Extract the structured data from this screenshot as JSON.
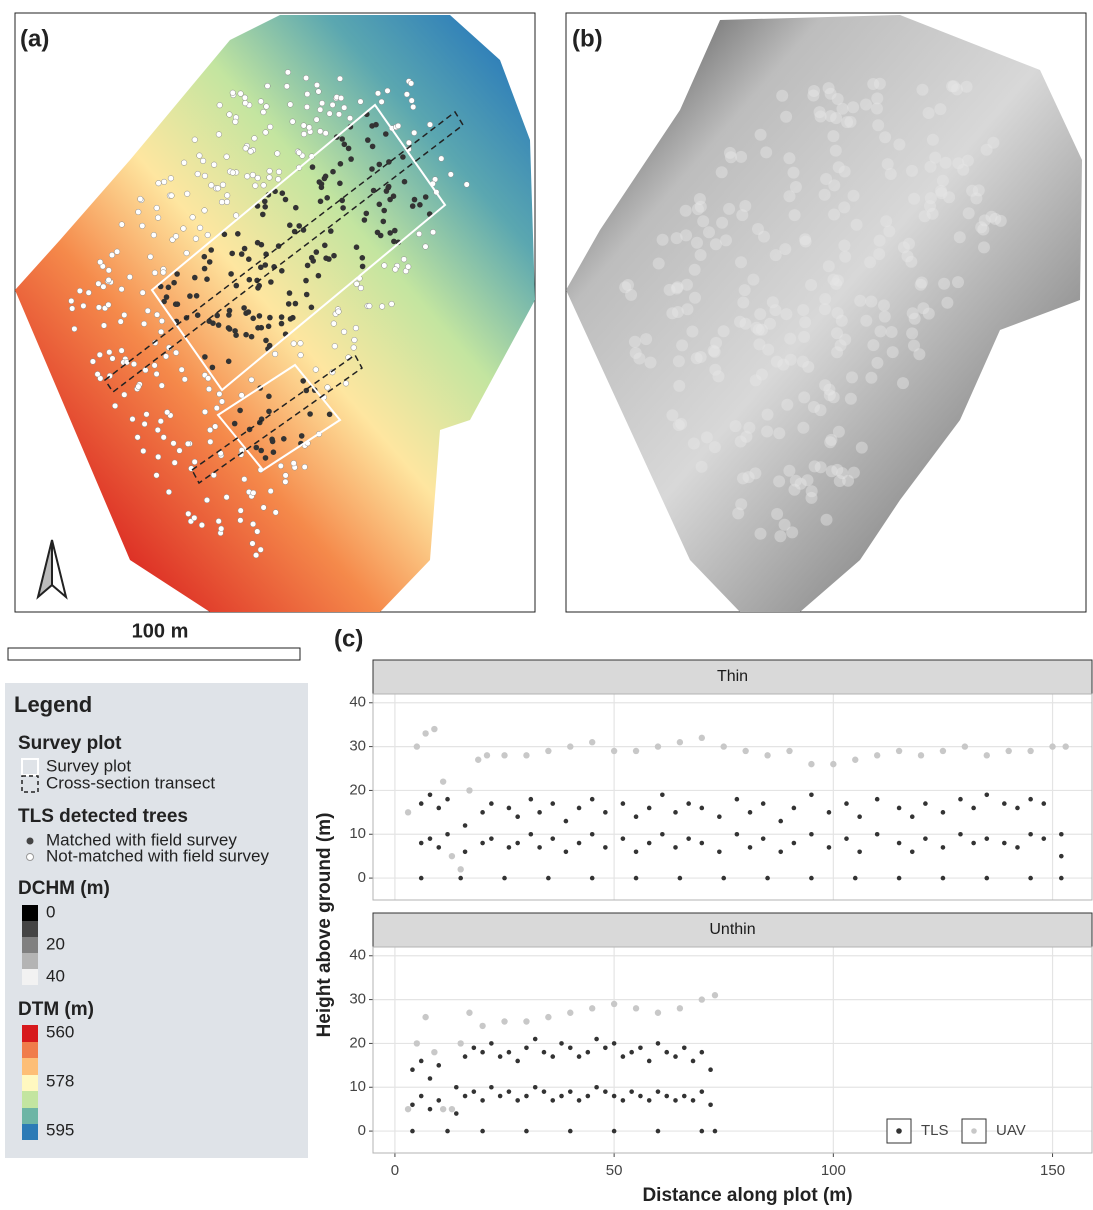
{
  "panel_labels": [
    "(a)",
    "(b)",
    "(c)"
  ],
  "scale_bar": "100 m",
  "legend": {
    "title": "Legend",
    "sections": [
      {
        "title": "Survey plot",
        "items": [
          "Survey plot",
          "Cross-section transect"
        ]
      },
      {
        "title": "TLS detected trees",
        "items": [
          "Matched with field survey",
          "Not-matched with field survey"
        ]
      },
      {
        "title": "DCHM (m)",
        "items": [
          "0",
          "20",
          "40"
        ]
      },
      {
        "title": "DTM (m)",
        "items": [
          "560",
          "578",
          "595"
        ]
      }
    ]
  },
  "chart_data": [
    {
      "type": "scatter",
      "facet": "Thin",
      "ylabel": "Height above ground (m)",
      "xlim": [
        -5,
        159
      ],
      "ylim": [
        -5,
        42
      ],
      "xticks": [
        0,
        50,
        100,
        150
      ],
      "yticks": [
        0,
        10,
        20,
        30,
        40
      ],
      "grid": true,
      "series": [
        {
          "name": "TLS",
          "color": "#333333",
          "x": [
            6,
            8,
            10,
            12,
            16,
            20,
            22,
            26,
            28,
            31,
            33,
            36,
            39,
            42,
            45,
            48,
            52,
            55,
            58,
            61,
            64,
            67,
            70,
            74,
            78,
            81,
            84,
            88,
            91,
            95,
            99,
            103,
            106,
            110,
            115,
            118,
            121,
            125,
            129,
            132,
            135,
            139,
            142,
            145,
            148,
            152,
            6,
            8,
            10,
            12,
            16,
            20,
            22,
            26,
            28,
            31,
            33,
            36,
            39,
            42,
            45,
            48,
            52,
            55,
            58,
            61,
            64,
            67,
            70,
            74,
            78,
            81,
            84,
            88,
            91,
            95,
            99,
            103,
            106,
            110,
            115,
            118,
            121,
            125,
            129,
            132,
            135,
            139,
            142,
            145,
            148,
            152,
            6,
            15,
            25,
            35,
            45,
            55,
            65,
            75,
            85,
            95,
            105,
            115,
            125,
            135,
            145,
            152
          ],
          "values": [
            17,
            19,
            16,
            18,
            12,
            15,
            17,
            16,
            14,
            18,
            15,
            17,
            13,
            16,
            18,
            15,
            17,
            14,
            16,
            19,
            15,
            17,
            16,
            14,
            18,
            15,
            17,
            13,
            16,
            19,
            15,
            17,
            14,
            18,
            16,
            14,
            17,
            15,
            18,
            16,
            19,
            17,
            16,
            18,
            17,
            10,
            8,
            9,
            7,
            10,
            6,
            8,
            9,
            7,
            8,
            10,
            7,
            9,
            6,
            8,
            10,
            7,
            9,
            6,
            8,
            10,
            7,
            9,
            8,
            6,
            10,
            7,
            9,
            6,
            8,
            10,
            7,
            9,
            6,
            10,
            8,
            6,
            9,
            7,
            10,
            8,
            9,
            8,
            7,
            10,
            9,
            5,
            0,
            0,
            0,
            0,
            0,
            0,
            0,
            0,
            0,
            0,
            0,
            0,
            0,
            0,
            0,
            0
          ]
        },
        {
          "name": "UAV",
          "color": "#c8c8c8",
          "x": [
            3,
            5,
            7,
            9,
            11,
            13,
            15,
            17,
            19,
            21,
            25,
            30,
            35,
            40,
            45,
            50,
            55,
            60,
            65,
            70,
            75,
            80,
            85,
            90,
            95,
            100,
            105,
            110,
            115,
            120,
            125,
            130,
            135,
            140,
            145,
            150,
            153
          ],
          "values": [
            15,
            30,
            33,
            34,
            22,
            5,
            2,
            20,
            27,
            28,
            28,
            28,
            29,
            30,
            31,
            29,
            29,
            30,
            31,
            32,
            30,
            29,
            28,
            29,
            26,
            26,
            27,
            28,
            29,
            28,
            29,
            30,
            28,
            29,
            29,
            30,
            30
          ]
        }
      ]
    },
    {
      "type": "scatter",
      "facet": "Unthin",
      "xlabel": "Distance along plot (m)",
      "legend": "bottom-right",
      "xlim": [
        -5,
        159
      ],
      "ylim": [
        -5,
        42
      ],
      "xticks": [
        0,
        50,
        100,
        150
      ],
      "yticks": [
        0,
        10,
        20,
        30,
        40
      ],
      "grid": true,
      "series": [
        {
          "name": "TLS",
          "color": "#333333",
          "x": [
            4,
            6,
            8,
            10,
            14,
            16,
            18,
            20,
            22,
            24,
            26,
            28,
            30,
            32,
            34,
            36,
            38,
            40,
            42,
            44,
            46,
            48,
            50,
            52,
            54,
            56,
            58,
            60,
            62,
            64,
            66,
            68,
            70,
            72,
            4,
            6,
            8,
            10,
            14,
            16,
            18,
            20,
            22,
            24,
            26,
            28,
            30,
            32,
            34,
            36,
            38,
            40,
            42,
            44,
            46,
            48,
            50,
            52,
            54,
            56,
            58,
            60,
            62,
            64,
            66,
            68,
            70,
            72,
            4,
            12,
            20,
            30,
            40,
            50,
            60,
            70,
            73
          ],
          "values": [
            14,
            16,
            12,
            15,
            10,
            17,
            19,
            18,
            20,
            17,
            18,
            16,
            19,
            21,
            18,
            17,
            20,
            19,
            17,
            18,
            21,
            19,
            20,
            17,
            18,
            19,
            16,
            20,
            18,
            17,
            19,
            16,
            18,
            14,
            6,
            8,
            5,
            7,
            4,
            8,
            9,
            7,
            10,
            8,
            9,
            7,
            8,
            10,
            9,
            7,
            8,
            9,
            7,
            8,
            10,
            9,
            8,
            7,
            9,
            8,
            7,
            9,
            8,
            7,
            8,
            7,
            9,
            6,
            0,
            0,
            0,
            0,
            0,
            0,
            0,
            0,
            0
          ]
        },
        {
          "name": "UAV",
          "color": "#c8c8c8",
          "x": [
            3,
            5,
            7,
            9,
            11,
            13,
            15,
            17,
            20,
            25,
            30,
            35,
            40,
            45,
            50,
            55,
            60,
            65,
            70,
            73
          ],
          "values": [
            5,
            20,
            26,
            18,
            5,
            5,
            20,
            27,
            24,
            25,
            25,
            26,
            27,
            28,
            29,
            28,
            27,
            28,
            30,
            31
          ]
        }
      ]
    }
  ]
}
